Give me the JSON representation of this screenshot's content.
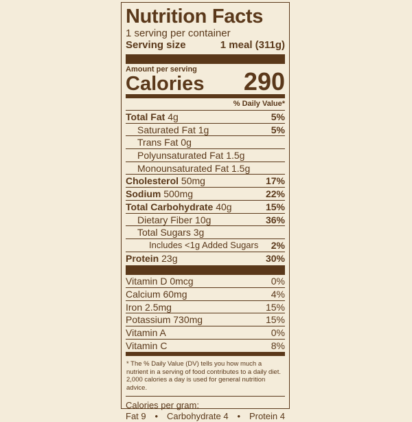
{
  "label": {
    "title": "Nutrition Facts",
    "servings_per_container": "1 serving per container",
    "serving_size_label": "Serving size",
    "serving_size_value": "1 meal (311g)",
    "amount_per_serving": "Amount per serving",
    "calories_label": "Calories",
    "calories_value": "290",
    "dv_header": "% Daily Value*"
  },
  "nutrients": [
    {
      "name": "Total Fat",
      "amount": "4g",
      "dv": "5%"
    },
    {
      "name": "Saturated Fat",
      "amount": "1g",
      "dv": "5%"
    },
    {
      "name": "Trans Fat",
      "amount": "0g",
      "dv": ""
    },
    {
      "name": "Polyunsaturated Fat",
      "amount": "1.5g",
      "dv": ""
    },
    {
      "name": "Monounsaturated Fat",
      "amount": "1.5g",
      "dv": ""
    },
    {
      "name": "Cholesterol",
      "amount": "50mg",
      "dv": "17%"
    },
    {
      "name": "Sodium",
      "amount": "500mg",
      "dv": "22%"
    },
    {
      "name": "Total Carbohydrate",
      "amount": "40g",
      "dv": "15%"
    },
    {
      "name": "Dietary Fiber",
      "amount": "10g",
      "dv": "36%"
    },
    {
      "name": "Total Sugars",
      "amount": "3g",
      "dv": ""
    },
    {
      "name": "Includes <1g Added Sugars",
      "amount": "",
      "dv": "2%"
    },
    {
      "name": "Protein",
      "amount": "23g",
      "dv": "30%"
    }
  ],
  "vitamins": [
    {
      "name": "Vitamin D 0mcg",
      "dv": "0%"
    },
    {
      "name": "Calcium 60mg",
      "dv": "4%"
    },
    {
      "name": "Iron 2.5mg",
      "dv": "15%"
    },
    {
      "name": "Potassium 730mg",
      "dv": "15%"
    },
    {
      "name": "Vitamin A",
      "dv": "0%"
    },
    {
      "name": "Vitamin C",
      "dv": "8%"
    }
  ],
  "footnote": {
    "text": "* The % Daily Value (DV) tells you how much a nutrient in a serving of food contributes to a daily diet. 2,000 calories a day is used for general nutrition advice."
  },
  "calories_per_gram": {
    "label": "Calories per gram:",
    "fat": "Fat 9",
    "carbohydrate": "Carbohydrate 4",
    "protein": "Protein 4",
    "separator": "•"
  },
  "colors": {
    "background": "#f4ecda",
    "ink": "#5a381a"
  }
}
